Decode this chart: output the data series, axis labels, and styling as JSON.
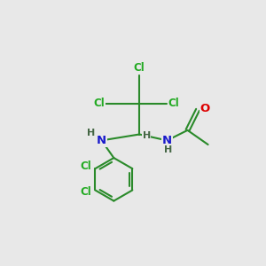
{
  "background_color": "#e8e8e8",
  "bond_color": "#2a8a2a",
  "nitrogen_color": "#1a1acc",
  "oxygen_color": "#dd0000",
  "chlorine_color": "#22aa22",
  "figsize": [
    3.0,
    3.0
  ],
  "dpi": 100,
  "xlim": [
    0,
    10
  ],
  "ylim": [
    0,
    10
  ]
}
